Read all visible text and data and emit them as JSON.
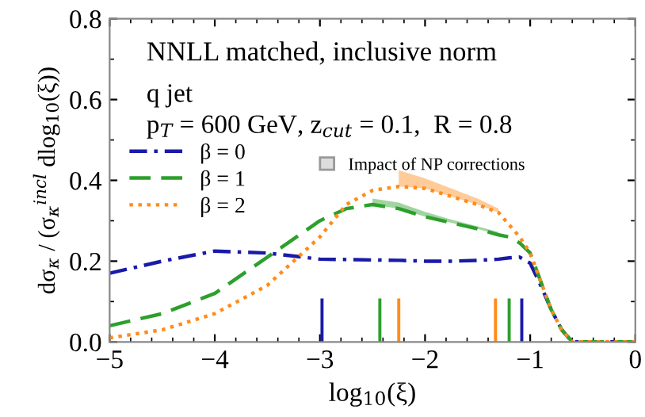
{
  "chart_data": {
    "type": "line",
    "title": "NNLL matched, inclusive norm",
    "subtitle": "q jet\np$_{T}$ = 600 GeV, z$_{cut}$ = 0.1,  R = 0.8",
    "xlabel": "log$_{10}$(ξ)",
    "ylabel": "dσ$_{κ}$ / (σ$_{κ}$$^{incl}$ dlog$_{10}$(ξ))",
    "x": [
      -5,
      -4.5,
      -4,
      -3.5,
      -3,
      -2.75,
      -2.5,
      -2.25,
      -2,
      -1.75,
      -1.5,
      -1.3,
      -1.2,
      -1.1,
      -1,
      -0.9,
      -0.8,
      -0.7,
      -0.6,
      -0.3,
      0
    ],
    "series": [
      {
        "name": "β = 0",
        "color": "#1a1aa8",
        "line_style": "dashdot",
        "values": [
          0.17,
          0.2,
          0.225,
          0.22,
          0.205,
          0.204,
          0.203,
          0.202,
          0.2,
          0.2,
          0.202,
          0.205,
          0.208,
          0.21,
          0.195,
          0.14,
          0.08,
          0.03,
          0.0,
          0.0,
          0.0
        ]
      },
      {
        "name": "β = 1",
        "color": "#2ca02c",
        "line_style": "dashed",
        "values": [
          0.04,
          0.07,
          0.12,
          0.21,
          0.3,
          0.33,
          0.34,
          0.33,
          0.31,
          0.295,
          0.28,
          0.265,
          0.26,
          0.245,
          0.22,
          0.15,
          0.08,
          0.03,
          0.0,
          0.0,
          0.0
        ],
        "lower": [
          null,
          null,
          null,
          null,
          null,
          null,
          0.34,
          0.33,
          0.31,
          0.295,
          0.28,
          0.265,
          null,
          null,
          null,
          null,
          null,
          null,
          null,
          null,
          null
        ],
        "upper": [
          null,
          null,
          null,
          null,
          null,
          null,
          0.355,
          0.345,
          0.322,
          0.303,
          0.286,
          0.272,
          null,
          null,
          null,
          null,
          null,
          null,
          null,
          null,
          null
        ]
      },
      {
        "name": "β = 2",
        "color": "#ff8c1a",
        "line_style": "dotted",
        "values": [
          0.01,
          0.03,
          0.07,
          0.14,
          0.26,
          0.34,
          0.375,
          0.385,
          0.38,
          0.36,
          0.34,
          0.32,
          0.29,
          0.26,
          0.22,
          0.15,
          0.08,
          0.03,
          0.0,
          0.0,
          0.0
        ],
        "lower": [
          null,
          null,
          null,
          null,
          null,
          null,
          null,
          0.385,
          0.38,
          0.36,
          0.34,
          0.32,
          null,
          null,
          null,
          null,
          null,
          null,
          null,
          null,
          null
        ],
        "upper": [
          null,
          null,
          null,
          null,
          null,
          null,
          null,
          0.425,
          0.405,
          0.38,
          0.355,
          0.33,
          null,
          null,
          null,
          null,
          null,
          null,
          null,
          null,
          null
        ]
      }
    ],
    "annotations": [
      "Impact of NP corrections"
    ],
    "ref_lines": [
      {
        "axis": "x",
        "value": -2.98,
        "color": "#1a1aa8"
      },
      {
        "axis": "x",
        "value": -2.43,
        "color": "#2ca02c"
      },
      {
        "axis": "x",
        "value": -2.25,
        "color": "#ff8c1a"
      },
      {
        "axis": "x",
        "value": -1.33,
        "color": "#ff8c1a"
      },
      {
        "axis": "x",
        "value": -1.2,
        "color": "#2ca02c"
      },
      {
        "axis": "x",
        "value": -1.08,
        "color": "#1a1aa8"
      }
    ],
    "xlim": [
      -5,
      0
    ],
    "xticks": [
      {
        "value": -5,
        "label": "−5"
      },
      {
        "value": -4,
        "label": "−4"
      },
      {
        "value": -3,
        "label": "−3"
      },
      {
        "value": -2,
        "label": "−2"
      },
      {
        "value": -1,
        "label": "−1"
      },
      0
    ],
    "ylim": [
      0,
      0.8
    ],
    "yticks": [
      {
        "value": 0,
        "label": "0.0"
      },
      0.2,
      0.4,
      0.6,
      0.8
    ],
    "legend": "left",
    "grid": false
  }
}
